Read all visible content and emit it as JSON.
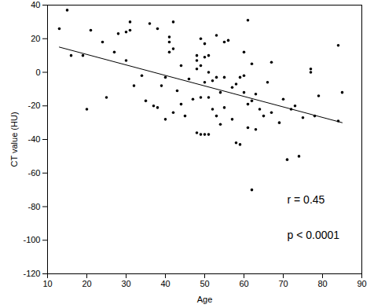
{
  "chart_data": {
    "type": "scatter",
    "x_label": "Age",
    "y_label": "CT value (HU)",
    "x": [
      13,
      15,
      16,
      19,
      20,
      21,
      24,
      25,
      27,
      28,
      30,
      30,
      31,
      31,
      32,
      34,
      35,
      36,
      37,
      38,
      38,
      39,
      40,
      40,
      41,
      41,
      41,
      42,
      42,
      42,
      43,
      44,
      44,
      45,
      46,
      47,
      48,
      48,
      48,
      48,
      49,
      49,
      49,
      49,
      50,
      50,
      50,
      50,
      51,
      51,
      51,
      51,
      52,
      52,
      53,
      53,
      53,
      54,
      54,
      55,
      55,
      55,
      56,
      57,
      57,
      58,
      58,
      59,
      59,
      60,
      60,
      60,
      61,
      61,
      61,
      62,
      62,
      62,
      63,
      63,
      64,
      65,
      66,
      67,
      67,
      69,
      70,
      71,
      72,
      73,
      74,
      75,
      77,
      77,
      78,
      79,
      84,
      84,
      85
    ],
    "values": [
      26,
      37,
      10,
      10,
      -22,
      25,
      18,
      -15,
      12,
      23,
      24,
      7,
      25,
      30,
      -8,
      -2,
      -17,
      29,
      -20,
      -21,
      26,
      -8,
      -28,
      -3,
      21,
      18,
      12,
      -24,
      14,
      30,
      -11,
      -19,
      4,
      -26,
      -4,
      -16,
      10,
      7,
      2,
      -36,
      -37,
      -15,
      4,
      20,
      17,
      9,
      -6,
      -37,
      0,
      -15,
      -37,
      10,
      -5,
      -22,
      22,
      -3,
      -26,
      -12,
      -31,
      18,
      -3,
      -21,
      19,
      -9,
      -28,
      -42,
      -7,
      -43,
      -3,
      -12,
      -2,
      12,
      -33,
      -19,
      31,
      -17,
      5,
      -70,
      -34,
      -13,
      -22,
      -26,
      -6,
      6,
      -24,
      -30,
      -16,
      -52,
      -22,
      -20,
      -50,
      -27,
      2,
      0,
      -26,
      -14,
      16,
      -29,
      -12
    ],
    "color": "#000000",
    "marker": "circle",
    "trend_line": {
      "x": [
        13,
        85
      ],
      "values": [
        15,
        -30
      ],
      "color": "#000000",
      "line_style": "solid"
    },
    "annotations": [
      "r = 0.45",
      "p < 0.0001"
    ],
    "xlim": [
      10,
      90
    ],
    "xticks": [
      10,
      20,
      30,
      40,
      50,
      60,
      70,
      80,
      90
    ],
    "ylim": [
      -120,
      40
    ],
    "yticks": [
      -120,
      -100,
      -80,
      -60,
      -40,
      -20,
      0,
      20,
      40
    ],
    "grid": false
  }
}
